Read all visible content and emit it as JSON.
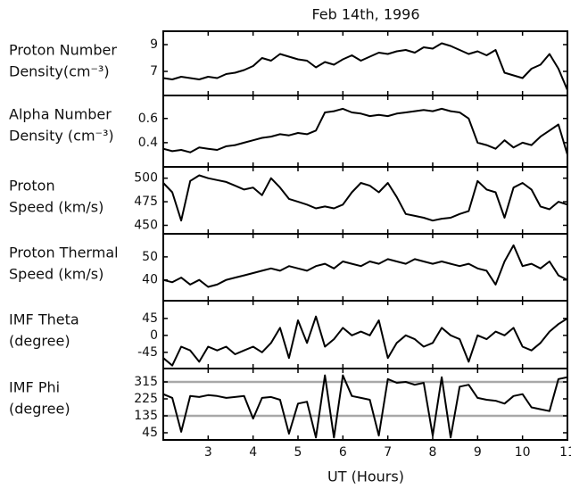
{
  "chart_data": [
    {
      "type": "line",
      "title": "Feb 14th, 1996",
      "ylabel": [
        "Proton Number",
        "Density(cm⁻³)"
      ],
      "x": [
        2.0,
        2.2,
        2.4,
        2.6,
        2.8,
        3.0,
        3.2,
        3.4,
        3.6,
        3.8,
        4.0,
        4.2,
        4.4,
        4.6,
        4.8,
        5.0,
        5.2,
        5.4,
        5.6,
        5.8,
        6.0,
        6.2,
        6.4,
        6.6,
        6.8,
        7.0,
        7.2,
        7.4,
        7.6,
        7.8,
        8.0,
        8.2,
        8.4,
        8.6,
        8.8,
        9.0,
        9.2,
        9.4,
        9.6,
        9.8,
        10.0,
        10.2,
        10.4,
        10.6,
        10.8,
        11.0
      ],
      "values": [
        6.5,
        6.4,
        6.6,
        6.5,
        6.4,
        6.6,
        6.5,
        6.8,
        6.9,
        7.1,
        7.4,
        8.0,
        7.8,
        8.3,
        8.1,
        7.9,
        7.8,
        7.3,
        7.7,
        7.5,
        7.9,
        8.2,
        7.8,
        8.1,
        8.4,
        8.3,
        8.5,
        8.6,
        8.4,
        8.8,
        8.7,
        9.1,
        8.9,
        8.6,
        8.3,
        8.5,
        8.2,
        8.6,
        6.9,
        6.7,
        6.5,
        7.2,
        7.5,
        8.3,
        7.2,
        5.6
      ],
      "color": "#000000",
      "xlim": [
        2,
        11
      ],
      "ylim": [
        5.2,
        10
      ],
      "yticks": [
        7,
        9
      ]
    },
    {
      "type": "line",
      "ylabel": [
        "Alpha Number",
        "Density (cm⁻³)"
      ],
      "x": [
        2.0,
        2.2,
        2.4,
        2.6,
        2.8,
        3.0,
        3.2,
        3.4,
        3.6,
        3.8,
        4.0,
        4.2,
        4.4,
        4.6,
        4.8,
        5.0,
        5.2,
        5.4,
        5.6,
        5.8,
        6.0,
        6.2,
        6.4,
        6.6,
        6.8,
        7.0,
        7.2,
        7.4,
        7.6,
        7.8,
        8.0,
        8.2,
        8.4,
        8.6,
        8.8,
        9.0,
        9.2,
        9.4,
        9.6,
        9.8,
        10.0,
        10.2,
        10.4,
        10.6,
        10.8,
        11.0
      ],
      "values": [
        0.35,
        0.33,
        0.34,
        0.32,
        0.36,
        0.35,
        0.34,
        0.37,
        0.38,
        0.4,
        0.42,
        0.44,
        0.45,
        0.47,
        0.46,
        0.48,
        0.47,
        0.5,
        0.65,
        0.66,
        0.68,
        0.65,
        0.64,
        0.62,
        0.63,
        0.62,
        0.64,
        0.65,
        0.66,
        0.67,
        0.66,
        0.68,
        0.66,
        0.65,
        0.6,
        0.4,
        0.38,
        0.35,
        0.42,
        0.36,
        0.4,
        0.38,
        0.45,
        0.5,
        0.55,
        0.3
      ],
      "color": "#000000",
      "xlim": [
        2,
        11
      ],
      "ylim": [
        0.2,
        0.79
      ],
      "yticks": [
        0.4,
        0.6
      ]
    },
    {
      "type": "line",
      "ylabel": [
        "Proton",
        "Speed (km/s)"
      ],
      "x": [
        2.0,
        2.2,
        2.4,
        2.6,
        2.8,
        3.0,
        3.2,
        3.4,
        3.6,
        3.8,
        4.0,
        4.2,
        4.4,
        4.6,
        4.8,
        5.0,
        5.2,
        5.4,
        5.6,
        5.8,
        6.0,
        6.2,
        6.4,
        6.6,
        6.8,
        7.0,
        7.2,
        7.4,
        7.6,
        7.8,
        8.0,
        8.2,
        8.4,
        8.6,
        8.8,
        9.0,
        9.2,
        9.4,
        9.6,
        9.8,
        10.0,
        10.2,
        10.4,
        10.6,
        10.8,
        11.0
      ],
      "values": [
        495,
        485,
        455,
        497,
        503,
        500,
        498,
        496,
        492,
        488,
        490,
        482,
        500,
        490,
        478,
        475,
        472,
        468,
        470,
        468,
        472,
        485,
        495,
        492,
        485,
        495,
        480,
        462,
        460,
        458,
        455,
        457,
        458,
        462,
        465,
        497,
        488,
        485,
        458,
        490,
        495,
        488,
        470,
        467,
        475,
        472
      ],
      "color": "#000000",
      "xlim": [
        2,
        11
      ],
      "ylim": [
        441,
        512
      ],
      "yticks": [
        450,
        475,
        500
      ]
    },
    {
      "type": "line",
      "ylabel": [
        "Proton Thermal",
        "Speed (km/s)"
      ],
      "x": [
        2.0,
        2.2,
        2.4,
        2.6,
        2.8,
        3.0,
        3.2,
        3.4,
        3.6,
        3.8,
        4.0,
        4.2,
        4.4,
        4.6,
        4.8,
        5.0,
        5.2,
        5.4,
        5.6,
        5.8,
        6.0,
        6.2,
        6.4,
        6.6,
        6.8,
        7.0,
        7.2,
        7.4,
        7.6,
        7.8,
        8.0,
        8.2,
        8.4,
        8.6,
        8.8,
        9.0,
        9.2,
        9.4,
        9.6,
        9.8,
        10.0,
        10.2,
        10.4,
        10.6,
        10.8,
        11.0
      ],
      "values": [
        40,
        39,
        41,
        38,
        40,
        37,
        38,
        40,
        41,
        42,
        43,
        44,
        45,
        44,
        46,
        45,
        44,
        46,
        47,
        45,
        48,
        47,
        46,
        48,
        47,
        49,
        48,
        47,
        49,
        48,
        47,
        48,
        47,
        46,
        47,
        45,
        44,
        38,
        48,
        55,
        46,
        47,
        45,
        48,
        42,
        40
      ],
      "color": "#000000",
      "xlim": [
        2,
        11
      ],
      "ylim": [
        31,
        60
      ],
      "yticks": [
        40,
        50
      ]
    },
    {
      "type": "line",
      "ylabel": [
        "IMF Theta",
        "(degree)"
      ],
      "x": [
        2.0,
        2.2,
        2.4,
        2.6,
        2.8,
        3.0,
        3.2,
        3.4,
        3.6,
        3.8,
        4.0,
        4.2,
        4.4,
        4.6,
        4.8,
        5.0,
        5.2,
        5.4,
        5.6,
        5.8,
        6.0,
        6.2,
        6.4,
        6.6,
        6.8,
        7.0,
        7.2,
        7.4,
        7.6,
        7.8,
        8.0,
        8.2,
        8.4,
        8.6,
        8.8,
        9.0,
        9.2,
        9.4,
        9.6,
        9.8,
        10.0,
        10.2,
        10.4,
        10.6,
        10.8,
        11.0
      ],
      "values": [
        -60,
        -80,
        -30,
        -40,
        -70,
        -30,
        -40,
        -30,
        -50,
        -40,
        -30,
        -45,
        -20,
        20,
        -60,
        40,
        -20,
        50,
        -30,
        -10,
        20,
        0,
        10,
        0,
        40,
        -60,
        -20,
        0,
        -10,
        -30,
        -20,
        20,
        0,
        -10,
        -70,
        0,
        -10,
        10,
        0,
        20,
        -30,
        -40,
        -20,
        10,
        30,
        45
      ],
      "color": "#000000",
      "xlim": [
        2,
        11
      ],
      "ylim": [
        -88,
        92
      ],
      "yticks": [
        -45,
        0,
        45
      ]
    },
    {
      "type": "line",
      "ylabel": [
        "IMF Phi",
        "(degree)"
      ],
      "xlabel": "UT (Hours)",
      "x": [
        2.0,
        2.2,
        2.4,
        2.6,
        2.8,
        3.0,
        3.2,
        3.4,
        3.6,
        3.8,
        4.0,
        4.2,
        4.4,
        4.6,
        4.8,
        5.0,
        5.2,
        5.4,
        5.6,
        5.8,
        6.0,
        6.2,
        6.4,
        6.6,
        6.8,
        7.0,
        7.2,
        7.4,
        7.6,
        7.8,
        8.0,
        8.2,
        8.4,
        8.6,
        8.8,
        9.0,
        9.2,
        9.4,
        9.6,
        9.8,
        10.0,
        10.2,
        10.4,
        10.6,
        10.8,
        11.0
      ],
      "values": [
        250,
        230,
        50,
        240,
        235,
        245,
        240,
        230,
        235,
        240,
        120,
        230,
        235,
        220,
        40,
        200,
        210,
        20,
        350,
        20,
        350,
        240,
        230,
        220,
        30,
        330,
        310,
        315,
        300,
        310,
        30,
        340,
        20,
        290,
        300,
        230,
        220,
        215,
        200,
        240,
        250,
        180,
        170,
        160,
        330,
        340
      ],
      "color": "#000000",
      "xlim": [
        2,
        11
      ],
      "ylim": [
        7,
        386
      ],
      "yticks": [
        45,
        135,
        225,
        315
      ],
      "hlines": [
        135,
        315
      ],
      "hline_color": "#a8a8a8",
      "xticks": [
        3,
        4,
        5,
        6,
        7,
        8,
        9,
        10,
        11
      ]
    }
  ]
}
